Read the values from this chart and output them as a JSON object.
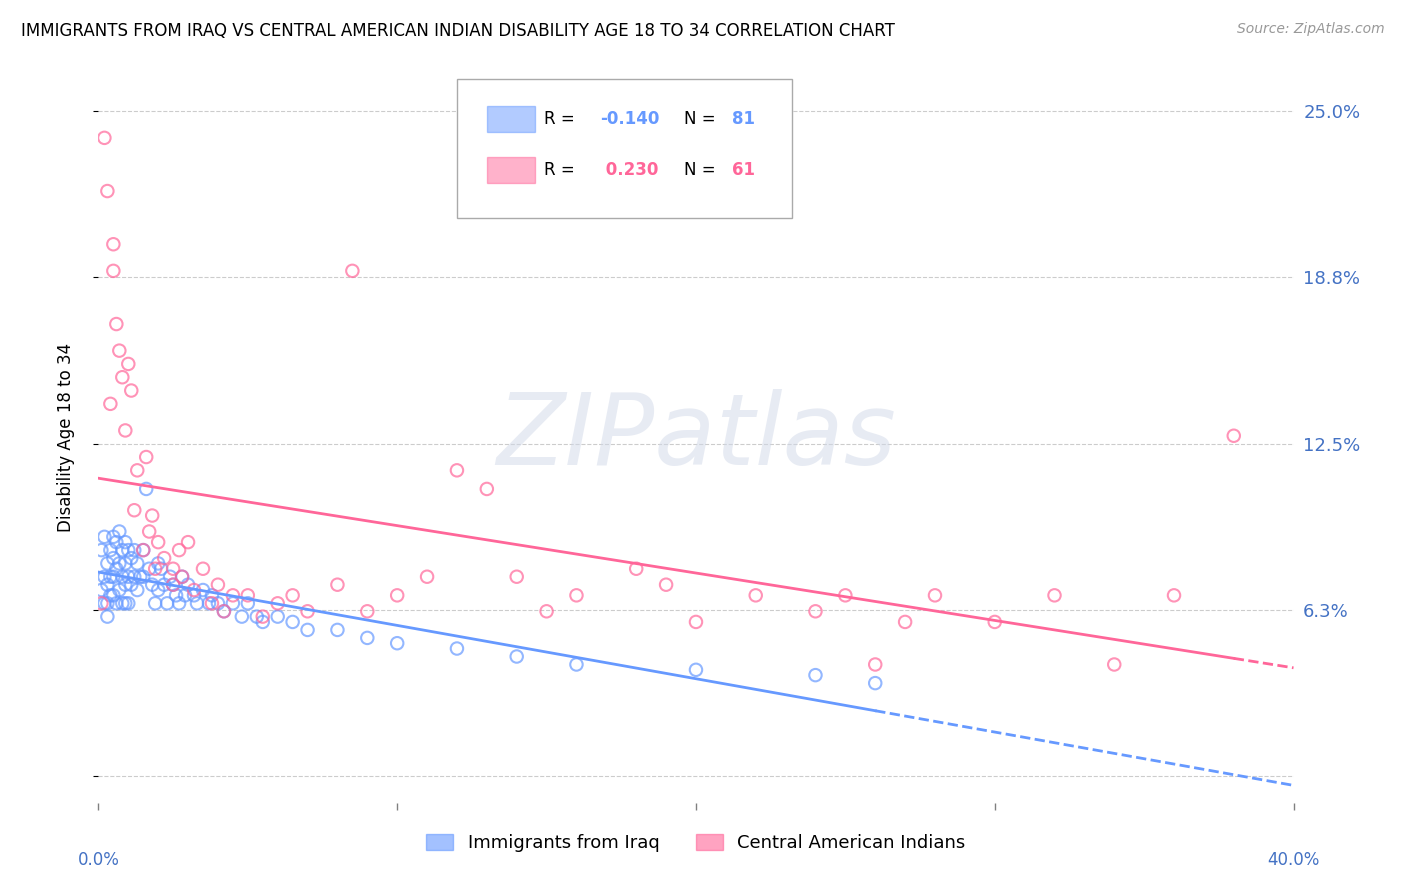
{
  "title": "IMMIGRANTS FROM IRAQ VS CENTRAL AMERICAN INDIAN DISABILITY AGE 18 TO 34 CORRELATION CHART",
  "source": "Source: ZipAtlas.com",
  "ylabel": "Disability Age 18 to 34",
  "yticks": [
    0.0,
    0.0625,
    0.125,
    0.1875,
    0.25
  ],
  "ytick_labels": [
    "",
    "6.3%",
    "12.5%",
    "18.8%",
    "25.0%"
  ],
  "xlim": [
    0.0,
    0.4
  ],
  "ylim": [
    -0.01,
    0.265
  ],
  "legend_iraq_r": "-0.140",
  "legend_iraq_n": "81",
  "legend_ca_r": "0.230",
  "legend_ca_n": "61",
  "legend_label_iraq": "Immigrants from Iraq",
  "legend_label_ca": "Central American Indians",
  "iraq_color": "#6699ff",
  "ca_color": "#ff6699",
  "watermark_text": "ZIPatlas",
  "iraq_scatter_x": [
    0.001,
    0.001,
    0.002,
    0.002,
    0.002,
    0.003,
    0.003,
    0.003,
    0.003,
    0.004,
    0.004,
    0.004,
    0.005,
    0.005,
    0.005,
    0.005,
    0.006,
    0.006,
    0.006,
    0.007,
    0.007,
    0.007,
    0.008,
    0.008,
    0.008,
    0.009,
    0.009,
    0.009,
    0.009,
    0.01,
    0.01,
    0.01,
    0.011,
    0.011,
    0.012,
    0.012,
    0.013,
    0.013,
    0.014,
    0.015,
    0.015,
    0.016,
    0.017,
    0.018,
    0.019,
    0.02,
    0.02,
    0.021,
    0.022,
    0.023,
    0.024,
    0.025,
    0.026,
    0.027,
    0.028,
    0.029,
    0.03,
    0.032,
    0.033,
    0.035,
    0.037,
    0.038,
    0.04,
    0.042,
    0.045,
    0.048,
    0.05,
    0.053,
    0.055,
    0.06,
    0.065,
    0.07,
    0.08,
    0.09,
    0.1,
    0.12,
    0.14,
    0.16,
    0.2,
    0.24,
    0.26
  ],
  "iraq_scatter_y": [
    0.085,
    0.07,
    0.09,
    0.075,
    0.065,
    0.08,
    0.072,
    0.065,
    0.06,
    0.085,
    0.075,
    0.068,
    0.09,
    0.082,
    0.075,
    0.068,
    0.088,
    0.078,
    0.065,
    0.092,
    0.08,
    0.07,
    0.085,
    0.075,
    0.065,
    0.088,
    0.08,
    0.072,
    0.065,
    0.085,
    0.075,
    0.065,
    0.082,
    0.072,
    0.085,
    0.075,
    0.08,
    0.07,
    0.075,
    0.085,
    0.075,
    0.108,
    0.078,
    0.072,
    0.065,
    0.08,
    0.07,
    0.078,
    0.072,
    0.065,
    0.075,
    0.072,
    0.068,
    0.065,
    0.075,
    0.068,
    0.072,
    0.068,
    0.065,
    0.07,
    0.065,
    0.068,
    0.065,
    0.062,
    0.065,
    0.06,
    0.065,
    0.06,
    0.058,
    0.06,
    0.058,
    0.055,
    0.055,
    0.052,
    0.05,
    0.048,
    0.045,
    0.042,
    0.04,
    0.038,
    0.035
  ],
  "ca_scatter_x": [
    0.001,
    0.002,
    0.003,
    0.004,
    0.005,
    0.005,
    0.006,
    0.007,
    0.008,
    0.009,
    0.01,
    0.011,
    0.012,
    0.013,
    0.015,
    0.016,
    0.017,
    0.018,
    0.019,
    0.02,
    0.022,
    0.025,
    0.027,
    0.028,
    0.03,
    0.032,
    0.035,
    0.038,
    0.04,
    0.042,
    0.05,
    0.055,
    0.06,
    0.07,
    0.08,
    0.085,
    0.09,
    0.1,
    0.11,
    0.12,
    0.13,
    0.14,
    0.16,
    0.18,
    0.19,
    0.2,
    0.22,
    0.24,
    0.25,
    0.26,
    0.27,
    0.28,
    0.3,
    0.32,
    0.34,
    0.36,
    0.38,
    0.025,
    0.045,
    0.065,
    0.15
  ],
  "ca_scatter_y": [
    0.065,
    0.24,
    0.22,
    0.14,
    0.2,
    0.19,
    0.17,
    0.16,
    0.15,
    0.13,
    0.155,
    0.145,
    0.1,
    0.115,
    0.085,
    0.12,
    0.092,
    0.098,
    0.078,
    0.088,
    0.082,
    0.072,
    0.085,
    0.075,
    0.088,
    0.07,
    0.078,
    0.065,
    0.072,
    0.062,
    0.068,
    0.06,
    0.065,
    0.062,
    0.072,
    0.19,
    0.062,
    0.068,
    0.075,
    0.115,
    0.108,
    0.075,
    0.068,
    0.078,
    0.072,
    0.058,
    0.068,
    0.062,
    0.068,
    0.042,
    0.058,
    0.068,
    0.058,
    0.068,
    0.042,
    0.068,
    0.128,
    0.078,
    0.068,
    0.068,
    0.062
  ]
}
